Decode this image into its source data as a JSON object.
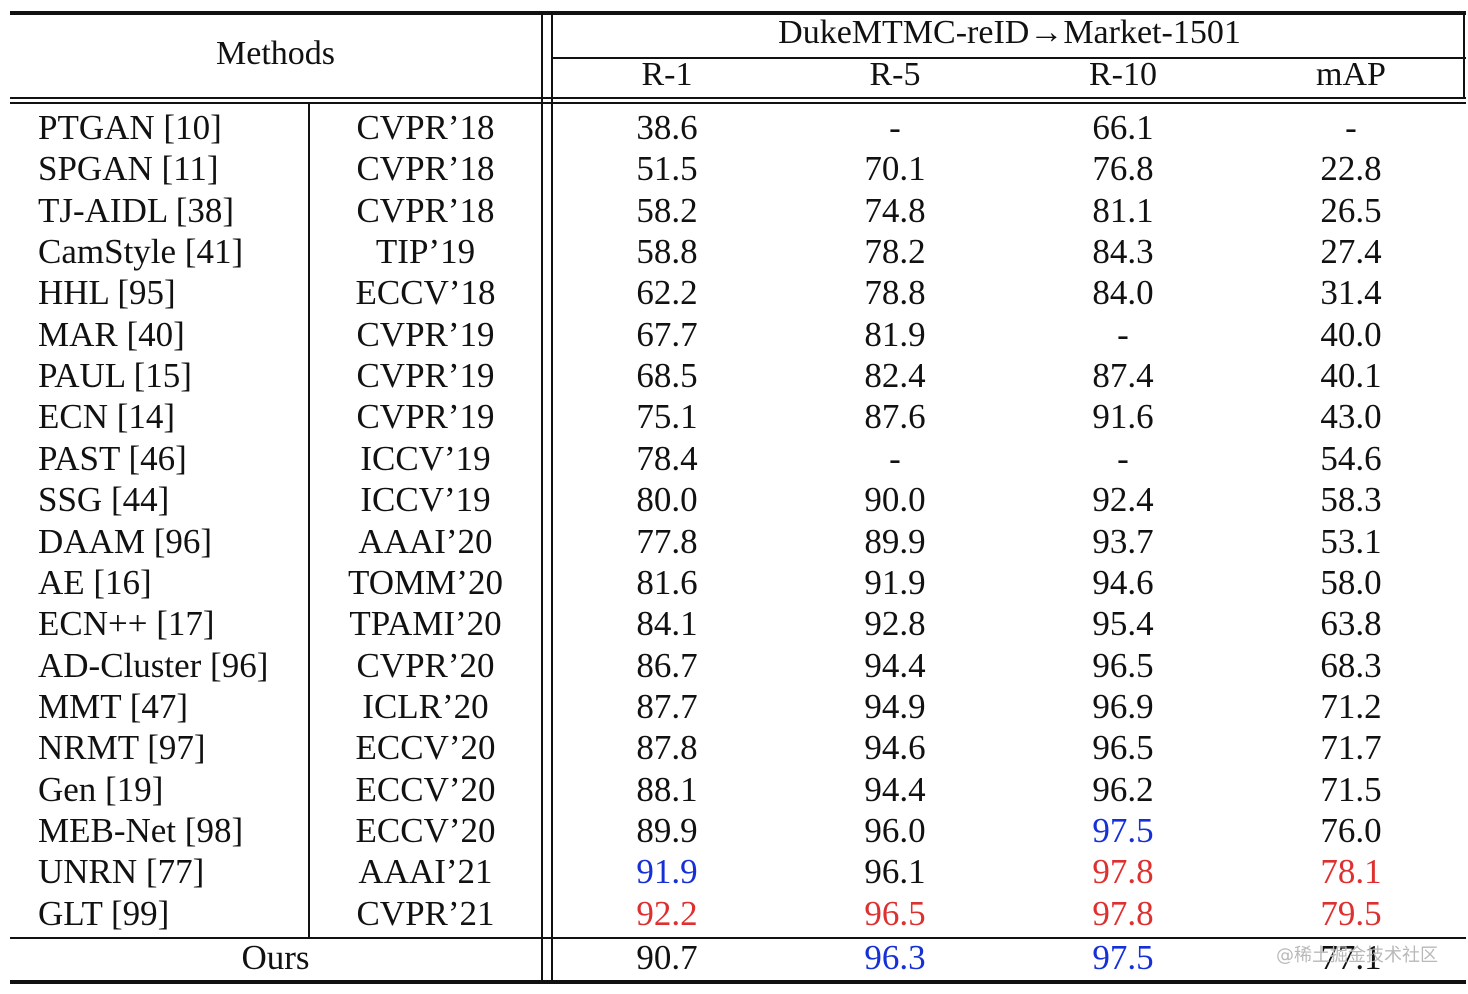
{
  "header": {
    "methods": "Methods",
    "group": "DukeMTMC-reID→Market-1501",
    "metrics": [
      "R-1",
      "R-5",
      "R-10",
      "mAP"
    ]
  },
  "rows": [
    {
      "method": "PTGAN [10]",
      "venue": "CVPR’18",
      "r1": "38.6",
      "r5": "-",
      "r10": "66.1",
      "map": "-"
    },
    {
      "method": "SPGAN [11]",
      "venue": "CVPR’18",
      "r1": "51.5",
      "r5": "70.1",
      "r10": "76.8",
      "map": "22.8"
    },
    {
      "method": "TJ-AIDL [38]",
      "venue": "CVPR’18",
      "r1": "58.2",
      "r5": "74.8",
      "r10": "81.1",
      "map": "26.5"
    },
    {
      "method": "CamStyle [41]",
      "venue": "TIP’19",
      "r1": "58.8",
      "r5": "78.2",
      "r10": "84.3",
      "map": "27.4"
    },
    {
      "method": "HHL [95]",
      "venue": "ECCV’18",
      "r1": "62.2",
      "r5": "78.8",
      "r10": "84.0",
      "map": "31.4"
    },
    {
      "method": "MAR [40]",
      "venue": "CVPR’19",
      "r1": "67.7",
      "r5": "81.9",
      "r10": "-",
      "map": "40.0"
    },
    {
      "method": "PAUL [15]",
      "venue": "CVPR’19",
      "r1": "68.5",
      "r5": "82.4",
      "r10": "87.4",
      "map": "40.1"
    },
    {
      "method": "ECN [14]",
      "venue": "CVPR’19",
      "r1": "75.1",
      "r5": "87.6",
      "r10": "91.6",
      "map": "43.0"
    },
    {
      "method": "PAST [46]",
      "venue": "ICCV’19",
      "r1": "78.4",
      "r5": "-",
      "r10": "-",
      "map": "54.6"
    },
    {
      "method": "SSG [44]",
      "venue": "ICCV’19",
      "r1": "80.0",
      "r5": "90.0",
      "r10": "92.4",
      "map": "58.3"
    },
    {
      "method": "DAAM [96]",
      "venue": "AAAI’20",
      "r1": "77.8",
      "r5": "89.9",
      "r10": "93.7",
      "map": "53.1"
    },
    {
      "method": "AE [16]",
      "venue": "TOMM’20",
      "r1": "81.6",
      "r5": "91.9",
      "r10": "94.6",
      "map": "58.0"
    },
    {
      "method": "ECN++ [17]",
      "venue": "TPAMI’20",
      "r1": "84.1",
      "r5": "92.8",
      "r10": "95.4",
      "map": "63.8"
    },
    {
      "method": "AD-Cluster [96]",
      "venue": "CVPR’20",
      "r1": "86.7",
      "r5": "94.4",
      "r10": "96.5",
      "map": "68.3"
    },
    {
      "method": "MMT [47]",
      "venue": "ICLR’20",
      "r1": "87.7",
      "r5": "94.9",
      "r10": "96.9",
      "map": "71.2"
    },
    {
      "method": "NRMT [97]",
      "venue": "ECCV’20",
      "r1": "87.8",
      "r5": "94.6",
      "r10": "96.5",
      "map": "71.7"
    },
    {
      "method": "Gen [19]",
      "venue": "ECCV’20",
      "r1": "88.1",
      "r5": "94.4",
      "r10": "96.2",
      "map": "71.5"
    },
    {
      "method": "MEB-Net [98]",
      "venue": "ECCV’20",
      "r1": "89.9",
      "r5": "96.0",
      "r10": "97.5",
      "map": "76.0",
      "colors": {
        "r10": "blue"
      }
    },
    {
      "method": "UNRN [77]",
      "venue": "AAAI’21",
      "r1": "91.9",
      "r5": "96.1",
      "r10": "97.8",
      "map": "78.1",
      "colors": {
        "r1": "blue",
        "r10": "red",
        "map": "red"
      }
    },
    {
      "method": "GLT [99]",
      "venue": "CVPR’21",
      "r1": "92.2",
      "r5": "96.5",
      "r10": "97.8",
      "map": "79.5",
      "colors": {
        "r1": "red",
        "r5": "red",
        "r10": "red",
        "map": "red"
      }
    }
  ],
  "ours": {
    "method": "Ours",
    "r1": "90.7",
    "r5": "96.3",
    "r10": "97.5",
    "map": "77.1",
    "colors": {
      "r5": "blue",
      "r10": "blue"
    }
  },
  "colors": {
    "blue": "#1530d6",
    "red": "#df3030",
    "text": "#111111"
  },
  "watermark": "@稀土掘金技术社区"
}
